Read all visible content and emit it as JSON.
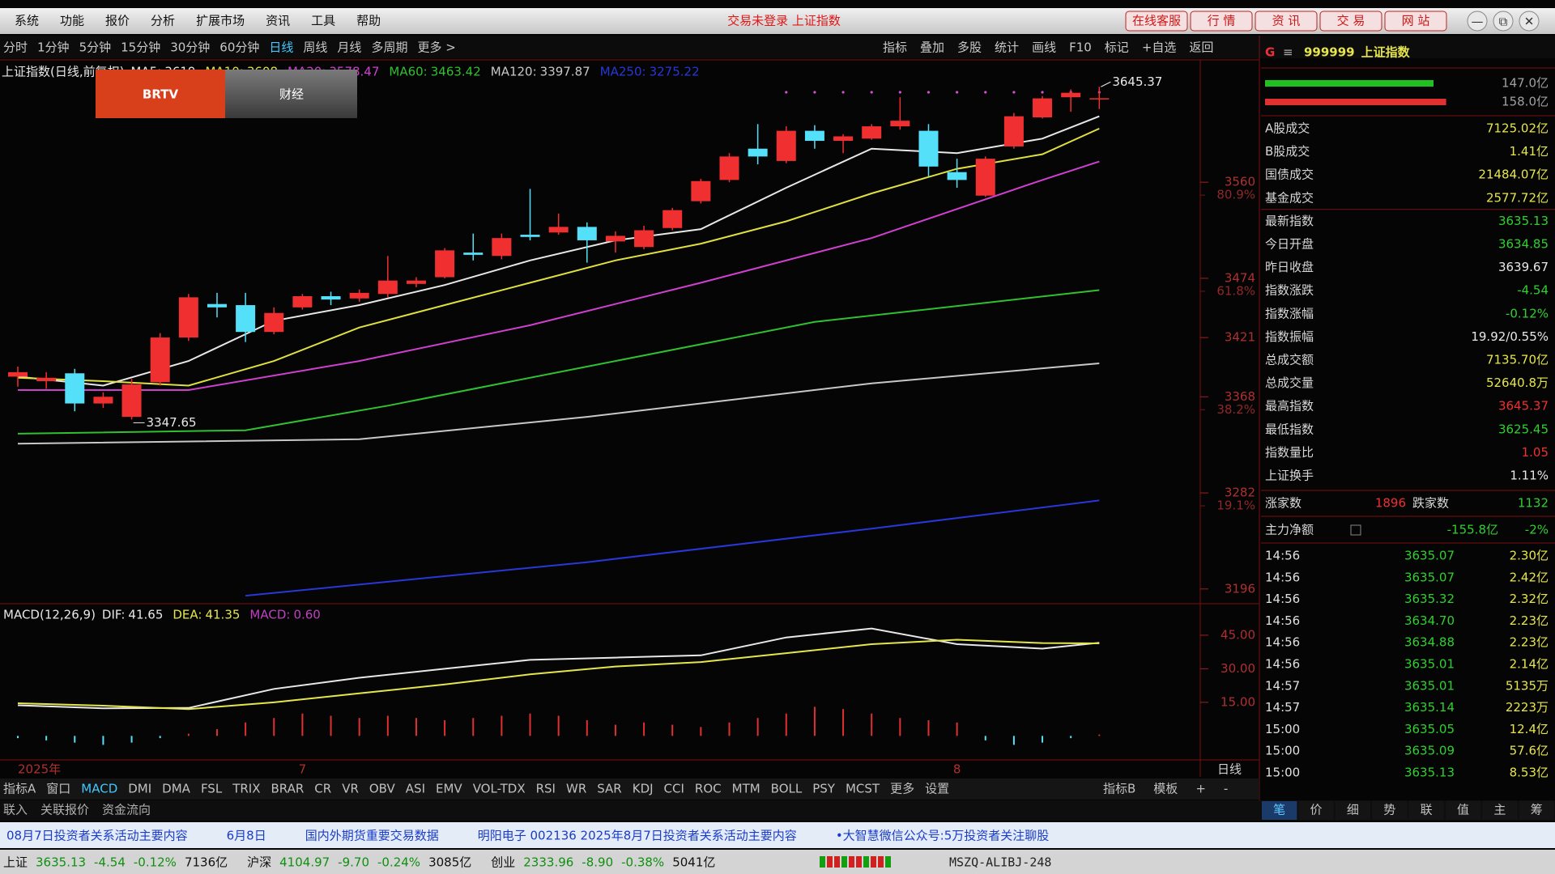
{
  "window": {
    "menu": [
      "系统",
      "功能",
      "报价",
      "分析",
      "扩展市场",
      "资讯",
      "工具",
      "帮助"
    ],
    "status_title": "交易未登录 上证指数",
    "buttons": [
      "在线客服",
      "行 情",
      "资 讯",
      "交 易",
      "网 站"
    ],
    "controls": [
      "—",
      "⧉",
      "✕"
    ]
  },
  "toolbar": {
    "periods": [
      "分时",
      "1分钟",
      "5分钟",
      "15分钟",
      "30分钟",
      "60分钟",
      "日线",
      "周线",
      "月线",
      "多周期",
      "更多 >"
    ],
    "active_period": 6,
    "tools": [
      "指标",
      "叠加",
      "多股",
      "统计",
      "画线",
      "F10",
      "标记",
      "+自选",
      "返回"
    ]
  },
  "logo": {
    "brand": "BRTV",
    "channel": "财经"
  },
  "chart_data": [
    {
      "type": "candlestick",
      "title": "上证指数(日线,前复权)",
      "ylim": [
        3185,
        3668
      ],
      "yticks": [
        3560,
        3474,
        3421,
        3368,
        3282,
        3196
      ],
      "fib_ticks": [
        {
          "value": 3560,
          "label": "80.9%"
        },
        {
          "value": 3474,
          "label": "61.8%"
        },
        {
          "value": 3368,
          "label": "38.2%"
        },
        {
          "value": 3282,
          "label": "19.1%"
        }
      ],
      "up_color": "#f03030",
      "down_color": "#54e0f8",
      "categories": [
        "2025年",
        null,
        null,
        null,
        null,
        null,
        null,
        null,
        null,
        null,
        "7",
        null,
        null,
        null,
        null,
        null,
        null,
        null,
        null,
        null,
        null,
        null,
        null,
        null,
        null,
        null,
        null,
        null,
        null,
        null,
        null,
        null,
        null,
        "8",
        null,
        null,
        null,
        null,
        null
      ],
      "period_label": "日线",
      "candles": [
        {
          "open": 3386,
          "high": 3395,
          "low": 3377,
          "close": 3390
        },
        {
          "open": 3382,
          "high": 3390,
          "low": 3375,
          "close": 3385
        },
        {
          "open": 3389,
          "high": 3393,
          "low": 3355,
          "close": 3362
        },
        {
          "open": 3362,
          "high": 3372,
          "low": 3358,
          "close": 3368
        },
        {
          "open": 3350,
          "high": 3384,
          "low": 3347.65,
          "close": 3379
        },
        {
          "open": 3381,
          "high": 3425,
          "low": 3378,
          "close": 3421
        },
        {
          "open": 3421,
          "high": 3460,
          "low": 3418,
          "close": 3457
        },
        {
          "open": 3451,
          "high": 3461,
          "low": 3439,
          "close": 3448
        },
        {
          "open": 3450,
          "high": 3461,
          "low": 3417,
          "close": 3426
        },
        {
          "open": 3426,
          "high": 3448,
          "low": 3424,
          "close": 3443
        },
        {
          "open": 3448,
          "high": 3460,
          "low": 3446,
          "close": 3458
        },
        {
          "open": 3458,
          "high": 3462,
          "low": 3450,
          "close": 3455
        },
        {
          "open": 3456,
          "high": 3464,
          "low": 3453,
          "close": 3461
        },
        {
          "open": 3460,
          "high": 3494,
          "low": 3457,
          "close": 3472
        },
        {
          "open": 3469,
          "high": 3475,
          "low": 3466,
          "close": 3472
        },
        {
          "open": 3475,
          "high": 3501,
          "low": 3474,
          "close": 3499
        },
        {
          "open": 3497,
          "high": 3514,
          "low": 3490,
          "close": 3495
        },
        {
          "open": 3494,
          "high": 3514,
          "low": 3491,
          "close": 3510
        },
        {
          "open": 3513,
          "high": 3554,
          "low": 3508,
          "close": 3511
        },
        {
          "open": 3515,
          "high": 3532,
          "low": 3513,
          "close": 3520
        },
        {
          "open": 3520,
          "high": 3524,
          "low": 3488,
          "close": 3508
        },
        {
          "open": 3507,
          "high": 3516,
          "low": 3497,
          "close": 3512
        },
        {
          "open": 3502,
          "high": 3521,
          "low": 3500,
          "close": 3517
        },
        {
          "open": 3519,
          "high": 3537,
          "low": 3517,
          "close": 3535
        },
        {
          "open": 3543,
          "high": 3563,
          "low": 3541,
          "close": 3561
        },
        {
          "open": 3562,
          "high": 3586,
          "low": 3560,
          "close": 3583
        },
        {
          "open": 3590,
          "high": 3612,
          "low": 3576,
          "close": 3583
        },
        {
          "open": 3579,
          "high": 3610,
          "low": 3577,
          "close": 3606
        },
        {
          "open": 3606,
          "high": 3611,
          "low": 3590,
          "close": 3597
        },
        {
          "open": 3597,
          "high": 3603,
          "low": 3586,
          "close": 3601
        },
        {
          "open": 3599,
          "high": 3612,
          "low": 3598,
          "close": 3610
        },
        {
          "open": 3610,
          "high": 3636,
          "low": 3607,
          "close": 3615
        },
        {
          "open": 3606,
          "high": 3612,
          "low": 3565,
          "close": 3574
        },
        {
          "open": 3569,
          "high": 3581,
          "low": 3555,
          "close": 3562
        },
        {
          "open": 3548,
          "high": 3583,
          "low": 3547,
          "close": 3581
        },
        {
          "open": 3592,
          "high": 3622,
          "low": 3590,
          "close": 3619
        },
        {
          "open": 3618,
          "high": 3637,
          "low": 3617,
          "close": 3635
        },
        {
          "open": 3636,
          "high": 3643,
          "low": 3623,
          "close": 3640
        },
        {
          "open": 3634.85,
          "high": 3645.37,
          "low": 3625.45,
          "close": 3635.13
        }
      ],
      "series": [
        {
          "name": "MA5:",
          "color": "#e8e8e8",
          "x": [
            0,
            3,
            6,
            9,
            12,
            15,
            18,
            21,
            24,
            27,
            30,
            33,
            36,
            38
          ],
          "values": [
            3386,
            3378,
            3400,
            3436,
            3450,
            3468,
            3490,
            3508,
            3518,
            3555,
            3590,
            3586,
            3599,
            3619
          ]
        },
        {
          "name": "MA10:",
          "color": "#e0e040",
          "x": [
            0,
            3,
            6,
            9,
            12,
            15,
            18,
            21,
            24,
            27,
            30,
            33,
            36,
            38
          ],
          "values": [
            3385,
            3382,
            3378,
            3400,
            3430,
            3450,
            3470,
            3490,
            3505,
            3525,
            3550,
            3572,
            3585,
            3608
          ]
        },
        {
          "name": "MA20:",
          "color": "#d040d0",
          "x": [
            0,
            6,
            12,
            18,
            24,
            30,
            36,
            38
          ],
          "values": [
            3374,
            3374,
            3400,
            3432,
            3470,
            3510,
            3562,
            3578.47
          ]
        },
        {
          "name": "MA60:",
          "color": "#30c030",
          "x": [
            0,
            8,
            13,
            20,
            28,
            38
          ],
          "values": [
            3335,
            3338,
            3360,
            3395,
            3435,
            3463.42
          ]
        },
        {
          "name": "MA120:",
          "color": "#c8c8c8",
          "x": [
            0,
            12,
            20,
            30,
            38
          ],
          "values": [
            3326,
            3330,
            3350,
            3380,
            3397.87
          ]
        },
        {
          "name": "MA250:",
          "color": "#2838d8",
          "x": [
            8,
            20,
            30,
            38
          ],
          "values": [
            3190,
            3220,
            3250,
            3275.22
          ]
        }
      ]
    },
    {
      "type": "macd",
      "title": "MACD(12,26,9)",
      "ylim": [
        -10,
        58
      ],
      "yticks": [
        {
          "value": 45,
          "label": "45.00"
        },
        {
          "value": 30,
          "label": "30.00"
        },
        {
          "value": 15,
          "label": "15.00"
        }
      ],
      "up_color": "#e03030",
      "down_color": "#54e0f8",
      "legend_labels": [
        "41.65",
        "41.35",
        "0.60"
      ],
      "series": [
        {
          "name": "DIF:",
          "color": "#e8e8e8",
          "x": [
            0,
            3,
            6,
            9,
            12,
            15,
            18,
            21,
            24,
            27,
            30,
            33,
            36,
            38
          ],
          "values": [
            13.7,
            12.3,
            12.5,
            21,
            26,
            30,
            34,
            35,
            36,
            44,
            48,
            41,
            39,
            41.65
          ]
        },
        {
          "name": "DEA:",
          "color": "#e6e64c",
          "x": [
            0,
            3,
            6,
            9,
            12,
            15,
            18,
            21,
            24,
            27,
            30,
            33,
            36,
            38
          ],
          "values": [
            14.6,
            13.5,
            12,
            15,
            19,
            23,
            27.5,
            31,
            33,
            37,
            41,
            43,
            41.5,
            41.35
          ]
        },
        {
          "name": "MACD:",
          "color": "#c040c0",
          "values": [
            -1,
            -2,
            -3,
            -4,
            -3,
            -1,
            1,
            3,
            6,
            8,
            10,
            9,
            8,
            9,
            8,
            7,
            8,
            9,
            10,
            9,
            7,
            5,
            6,
            5,
            4,
            6,
            8,
            10,
            13,
            12,
            10,
            8,
            7,
            6,
            -2,
            -4,
            -3,
            -1,
            0.6
          ]
        }
      ]
    }
  ],
  "indicator_tabs": {
    "left": [
      "指标A",
      "窗口",
      "MACD",
      "DMI",
      "DMA",
      "FSL",
      "TRIX",
      "BRAR",
      "CR",
      "VR",
      "OBV",
      "ASI",
      "EMV",
      "VOL-TDX",
      "RSI",
      "WR",
      "SAR",
      "KDJ",
      "CCI",
      "ROC",
      "MTM",
      "BOLL",
      "PSY",
      "MCST",
      "更多",
      "设置"
    ],
    "active": 2,
    "right": [
      "指标B",
      "模板",
      "+",
      "-"
    ]
  },
  "sub_tabs": [
    "联入",
    "关联报价",
    "资金流向"
  ],
  "news": [
    "08月7日投资者关系活动主要内容",
    "6月8日",
    "国内外期货重要交易数据",
    "明阳电子 002136 2025年8月7日投资者关系活动主要内容",
    "•大智慧微信公众号:5万投资者关注聊股"
  ],
  "status_bar": {
    "indices": [
      {
        "name": "上证",
        "last": "3635.13",
        "change": "-4.54",
        "pct": "-0.12%",
        "amount": "7136亿"
      },
      {
        "name": "沪深",
        "last": "4104.97",
        "change": "-9.70",
        "pct": "-0.24%",
        "amount": "3085亿"
      },
      {
        "name": "创业",
        "last": "2333.96",
        "change": "-8.90",
        "pct": "-0.38%",
        "amount": "5041亿"
      }
    ],
    "server": "MSZQ-ALIBJ-248"
  },
  "quote_panel": {
    "header": {
      "mark": "G",
      "menu": "≡",
      "code": "999999",
      "name": "上证指数"
    },
    "bars": [
      {
        "value": 147.0,
        "label": "147.0亿",
        "color": "#20c020"
      },
      {
        "value": 158.0,
        "label": "158.0亿",
        "color": "#e03030"
      }
    ],
    "rows": [
      {
        "label": "A股成交",
        "value": "7125.02亿",
        "color": "#e6e64c"
      },
      {
        "label": "B股成交",
        "value": "1.41亿",
        "color": "#e6e64c"
      },
      {
        "label": "国债成交",
        "value": "21484.07亿",
        "color": "#e6e64c"
      },
      {
        "label": "基金成交",
        "value": "2577.72亿",
        "color": "#e6e64c"
      },
      {
        "label": "最新指数",
        "value": "3635.13",
        "color": "#30d030"
      },
      {
        "label": "今日开盘",
        "value": "3634.85",
        "color": "#30d030"
      },
      {
        "label": "昨日收盘",
        "value": "3639.67",
        "color": "#e8e8e8"
      },
      {
        "label": "指数涨跌",
        "value": "-4.54",
        "color": "#30d030"
      },
      {
        "label": "指数涨幅",
        "value": "-0.12%",
        "color": "#30d030"
      },
      {
        "label": "指数振幅",
        "value": "19.92/0.55%",
        "color": "#e8e8e8"
      },
      {
        "label": "总成交额",
        "value": "7135.70亿",
        "color": "#e6e64c"
      },
      {
        "label": "总成交量",
        "value": "52640.8万",
        "color": "#e6e64c"
      },
      {
        "label": "最高指数",
        "value": "3645.37",
        "color": "#f03030"
      },
      {
        "label": "最低指数",
        "value": "3625.45",
        "color": "#30d030"
      },
      {
        "label": "指数量比",
        "value": "1.05",
        "color": "#f03030"
      },
      {
        "label": "上证换手",
        "value": "1.11%",
        "color": "#e8e8e8"
      }
    ],
    "breadth": {
      "up_label": "涨家数",
      "up": "1896",
      "down_label": "跌家数",
      "down": "1132"
    },
    "flow": {
      "label": "主力净额",
      "value": "-155.8亿",
      "pct": "-2%"
    },
    "ticks": [
      [
        "14:56",
        "3635.07",
        "2.30亿"
      ],
      [
        "14:56",
        "3635.07",
        "2.42亿"
      ],
      [
        "14:56",
        "3635.32",
        "2.32亿"
      ],
      [
        "14:56",
        "3634.70",
        "2.23亿"
      ],
      [
        "14:56",
        "3634.88",
        "2.23亿"
      ],
      [
        "14:56",
        "3635.01",
        "2.14亿"
      ],
      [
        "14:57",
        "3635.01",
        "5135万"
      ],
      [
        "14:57",
        "3635.14",
        "2223万"
      ],
      [
        "15:00",
        "3635.05",
        "12.4亿"
      ],
      [
        "15:00",
        "3635.09",
        "57.6亿"
      ],
      [
        "15:00",
        "3635.13",
        "8.53亿"
      ]
    ],
    "tabs": [
      "笔",
      "价",
      "细",
      "势",
      "联",
      "值",
      "主",
      "筹"
    ]
  }
}
